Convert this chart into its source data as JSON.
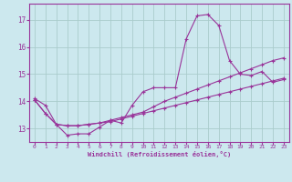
{
  "xlabel": "Windchill (Refroidissement éolien,°C)",
  "bg_color": "#cce8ee",
  "grid_color": "#aacccc",
  "line_color": "#993399",
  "spine_color": "#993399",
  "xlim": [
    -0.5,
    23.5
  ],
  "ylim": [
    12.5,
    17.6
  ],
  "yticks": [
    13,
    14,
    15,
    16,
    17
  ],
  "xticks": [
    0,
    1,
    2,
    3,
    4,
    5,
    6,
    7,
    8,
    9,
    10,
    11,
    12,
    13,
    14,
    15,
    16,
    17,
    18,
    19,
    20,
    21,
    22,
    23
  ],
  "series1_x": [
    0,
    1,
    2,
    3,
    4,
    5,
    6,
    7,
    8,
    9,
    10,
    11,
    12,
    13,
    14,
    15,
    16,
    17,
    18,
    19,
    20,
    21,
    22,
    23
  ],
  "series1_y": [
    14.1,
    13.85,
    13.15,
    12.75,
    12.8,
    12.8,
    13.05,
    13.3,
    13.2,
    13.85,
    14.35,
    14.5,
    14.5,
    14.5,
    16.3,
    17.15,
    17.2,
    16.8,
    15.5,
    15.0,
    14.95,
    15.1,
    14.7,
    14.8
  ],
  "series2_x": [
    0,
    1,
    2,
    3,
    4,
    5,
    6,
    7,
    8,
    9,
    10,
    11,
    12,
    13,
    14,
    15,
    16,
    17,
    18,
    19,
    20,
    21,
    22,
    23
  ],
  "series2_y": [
    14.05,
    13.55,
    13.15,
    13.1,
    13.1,
    13.15,
    13.2,
    13.25,
    13.35,
    13.45,
    13.55,
    13.65,
    13.75,
    13.85,
    13.95,
    14.05,
    14.15,
    14.25,
    14.35,
    14.45,
    14.55,
    14.65,
    14.75,
    14.85
  ],
  "series3_x": [
    0,
    1,
    2,
    3,
    4,
    5,
    6,
    7,
    8,
    9,
    10,
    11,
    12,
    13,
    14,
    15,
    16,
    17,
    18,
    19,
    20,
    21,
    22,
    23
  ],
  "series3_y": [
    14.05,
    13.55,
    13.15,
    13.1,
    13.1,
    13.15,
    13.2,
    13.3,
    13.4,
    13.5,
    13.6,
    13.8,
    14.0,
    14.15,
    14.3,
    14.45,
    14.6,
    14.75,
    14.9,
    15.05,
    15.2,
    15.35,
    15.5,
    15.6
  ]
}
